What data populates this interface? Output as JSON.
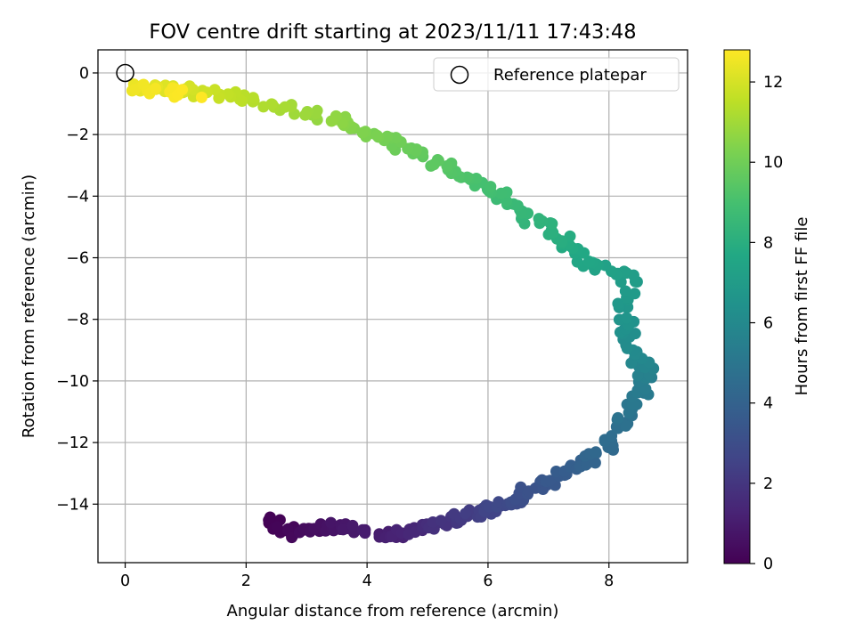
{
  "chart_data": {
    "type": "scatter",
    "title": "FOV centre drift starting at 2023/11/11 17:43:48",
    "xlabel": "Angular distance from reference (arcmin)",
    "ylabel": "Rotation from reference (arcmin)",
    "xlim": [
      -0.45,
      9.3
    ],
    "ylim": [
      -15.9,
      0.75
    ],
    "x_ticks": [
      "0",
      "2",
      "4",
      "6",
      "8"
    ],
    "x_tick_values": [
      0,
      2,
      4,
      6,
      8
    ],
    "y_ticks": [
      "0",
      "−2",
      "−4",
      "−6",
      "−8",
      "−10",
      "−12",
      "−14"
    ],
    "y_tick_values": [
      0,
      -2,
      -4,
      -6,
      -8,
      -10,
      -12,
      -14
    ],
    "grid": true,
    "legend_position": "top-right",
    "legend_entries": [
      "Reference platepar"
    ],
    "reference_point": {
      "x": 0.0,
      "y": 0.0
    },
    "colorbar": {
      "label": "Hours from first FF file",
      "colormap": "viridis",
      "range": [
        0,
        12.8
      ],
      "ticks": [
        "0",
        "2",
        "4",
        "6",
        "8",
        "10",
        "12"
      ],
      "tick_values": [
        0,
        2,
        4,
        6,
        8,
        10,
        12
      ]
    },
    "series": [
      {
        "drift_path_keypoints": [
          {
            "x": 2.35,
            "y": -14.55,
            "hours": 0.0
          },
          {
            "x": 2.8,
            "y": -14.95,
            "hours": 0.25
          },
          {
            "x": 3.3,
            "y": -14.75,
            "hours": 0.55
          },
          {
            "x": 3.6,
            "y": -14.7,
            "hours": 0.8
          },
          {
            "x": 4.5,
            "y": -15.05,
            "hours": 1.2
          },
          {
            "x": 5.0,
            "y": -14.75,
            "hours": 1.65
          },
          {
            "x": 5.5,
            "y": -14.45,
            "hours": 2.1
          },
          {
            "x": 6.0,
            "y": -14.2,
            "hours": 2.55
          },
          {
            "x": 6.45,
            "y": -13.8,
            "hours": 3.0
          },
          {
            "x": 7.0,
            "y": -13.3,
            "hours": 3.45
          },
          {
            "x": 7.4,
            "y": -12.75,
            "hours": 3.9
          },
          {
            "x": 7.95,
            "y": -12.2,
            "hours": 4.35
          },
          {
            "x": 8.25,
            "y": -11.2,
            "hours": 4.8
          },
          {
            "x": 8.55,
            "y": -10.3,
            "hours": 5.25
          },
          {
            "x": 8.6,
            "y": -9.6,
            "hours": 5.7
          },
          {
            "x": 8.35,
            "y": -8.8,
            "hours": 6.15
          },
          {
            "x": 8.25,
            "y": -7.8,
            "hours": 6.6
          },
          {
            "x": 8.35,
            "y": -6.6,
            "hours": 7.05
          },
          {
            "x": 7.6,
            "y": -6.2,
            "hours": 7.5
          },
          {
            "x": 7.25,
            "y": -5.3,
            "hours": 7.95
          },
          {
            "x": 6.6,
            "y": -4.6,
            "hours": 8.4
          },
          {
            "x": 6.1,
            "y": -3.8,
            "hours": 8.85
          },
          {
            "x": 5.5,
            "y": -3.2,
            "hours": 9.3
          },
          {
            "x": 4.8,
            "y": -2.6,
            "hours": 9.75
          },
          {
            "x": 4.2,
            "y": -2.0,
            "hours": 10.2
          },
          {
            "x": 3.4,
            "y": -1.45,
            "hours": 10.65
          },
          {
            "x": 2.6,
            "y": -1.05,
            "hours": 11.1
          },
          {
            "x": 1.8,
            "y": -0.75,
            "hours": 11.55
          },
          {
            "x": 0.9,
            "y": -0.55,
            "hours": 12.0
          },
          {
            "x": 0.15,
            "y": -0.45,
            "hours": 12.5
          },
          {
            "x": 1.15,
            "y": -0.7,
            "hours": 12.8
          }
        ],
        "point_count": 380
      }
    ]
  }
}
